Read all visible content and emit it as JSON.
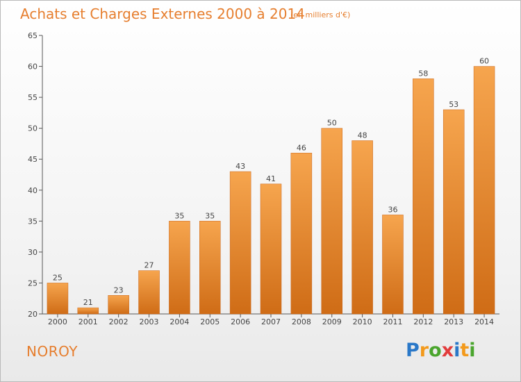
{
  "title": "Achats et Charges Externes 2000 à 2014",
  "subtitle": "(en milliers d'€)",
  "place": "NOROY",
  "brand": {
    "letters": [
      "P",
      "r",
      "o",
      "x",
      "i",
      "t",
      "i"
    ],
    "colors": [
      "#2a78c8",
      "#f39a1c",
      "#4aa52d",
      "#e23c3c",
      "#2a78c8",
      "#f39a1c",
      "#4aa52d"
    ]
  },
  "colors": {
    "accent": "#e67e2e",
    "bar_top": "#f6a54e",
    "bar_bottom": "#cf6c16",
    "axis": "#555555",
    "grid": "#dddddd"
  },
  "chart_data": {
    "type": "bar",
    "title": "Achats et Charges Externes 2000 à 2014",
    "subtitle": "(en milliers d'€)",
    "categories": [
      "2000",
      "2001",
      "2002",
      "2003",
      "2004",
      "2005",
      "2006",
      "2007",
      "2008",
      "2009",
      "2010",
      "2011",
      "2012",
      "2013",
      "2014"
    ],
    "values": [
      25,
      21,
      23,
      27,
      35,
      35,
      43,
      41,
      46,
      50,
      48,
      36,
      58,
      53,
      60
    ],
    "ylim": [
      20,
      65
    ],
    "yticks": [
      20,
      25,
      30,
      35,
      40,
      45,
      50,
      55,
      60,
      65
    ],
    "data_labels": true,
    "grid": false,
    "xlabel": "",
    "ylabel": ""
  }
}
